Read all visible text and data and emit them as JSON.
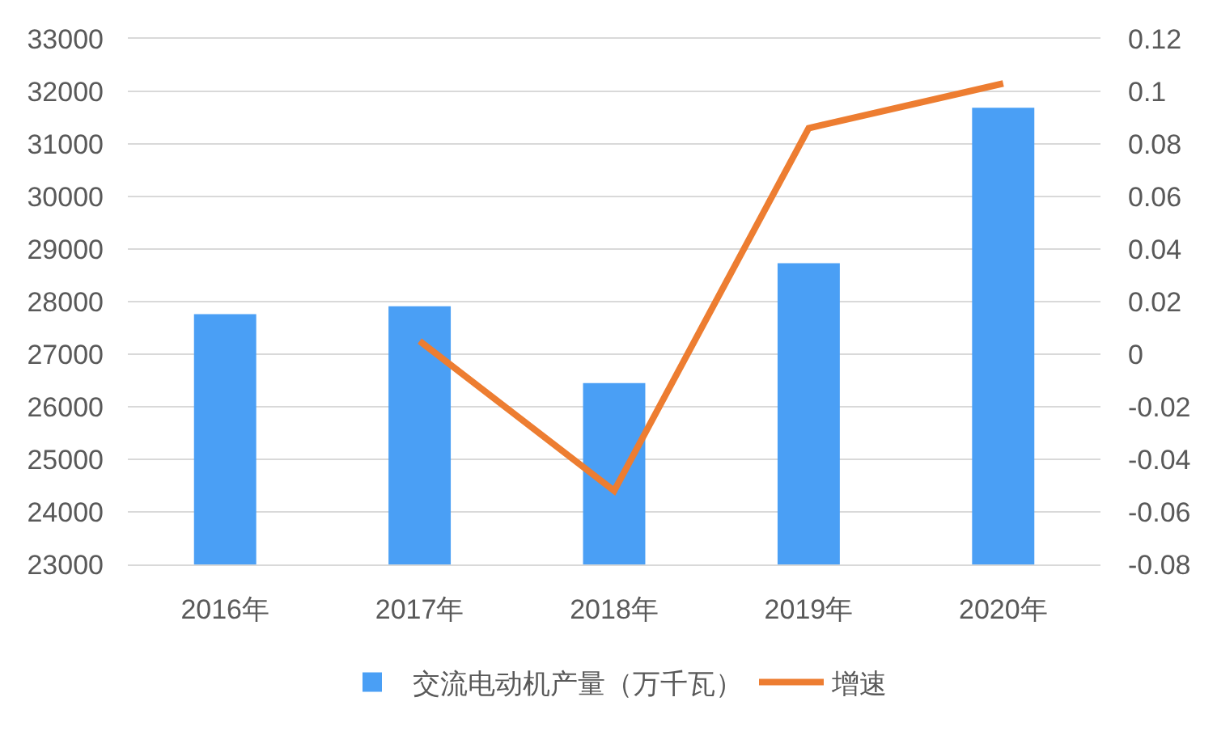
{
  "chart_data": {
    "type": "bar",
    "categories": [
      "2016年",
      "2017年",
      "2018年",
      "2019年",
      "2020年"
    ],
    "series": [
      {
        "name": "交流电动机产量（万千瓦）",
        "color": "#4a9ff5",
        "values": [
          27760,
          27910,
          26450,
          28730,
          31690
        ]
      },
      {
        "name": "增速",
        "type": "line",
        "axis": "y2",
        "color": "#ed7d31",
        "values": [
          null,
          0.005,
          -0.052,
          0.086,
          0.103
        ]
      }
    ],
    "ylim": [
      23000,
      33000
    ],
    "yticks": [
      23000,
      24000,
      25000,
      26000,
      27000,
      28000,
      29000,
      30000,
      31000,
      32000,
      33000
    ],
    "y2lim": [
      -0.08,
      0.12
    ],
    "y2ticks": [
      -0.08,
      -0.06,
      -0.04,
      -0.02,
      0,
      0.02,
      0.04,
      0.06,
      0.08,
      0.1,
      0.12
    ],
    "grid": "y",
    "legend": "bottom",
    "marker": "none",
    "line_style": "solid"
  }
}
